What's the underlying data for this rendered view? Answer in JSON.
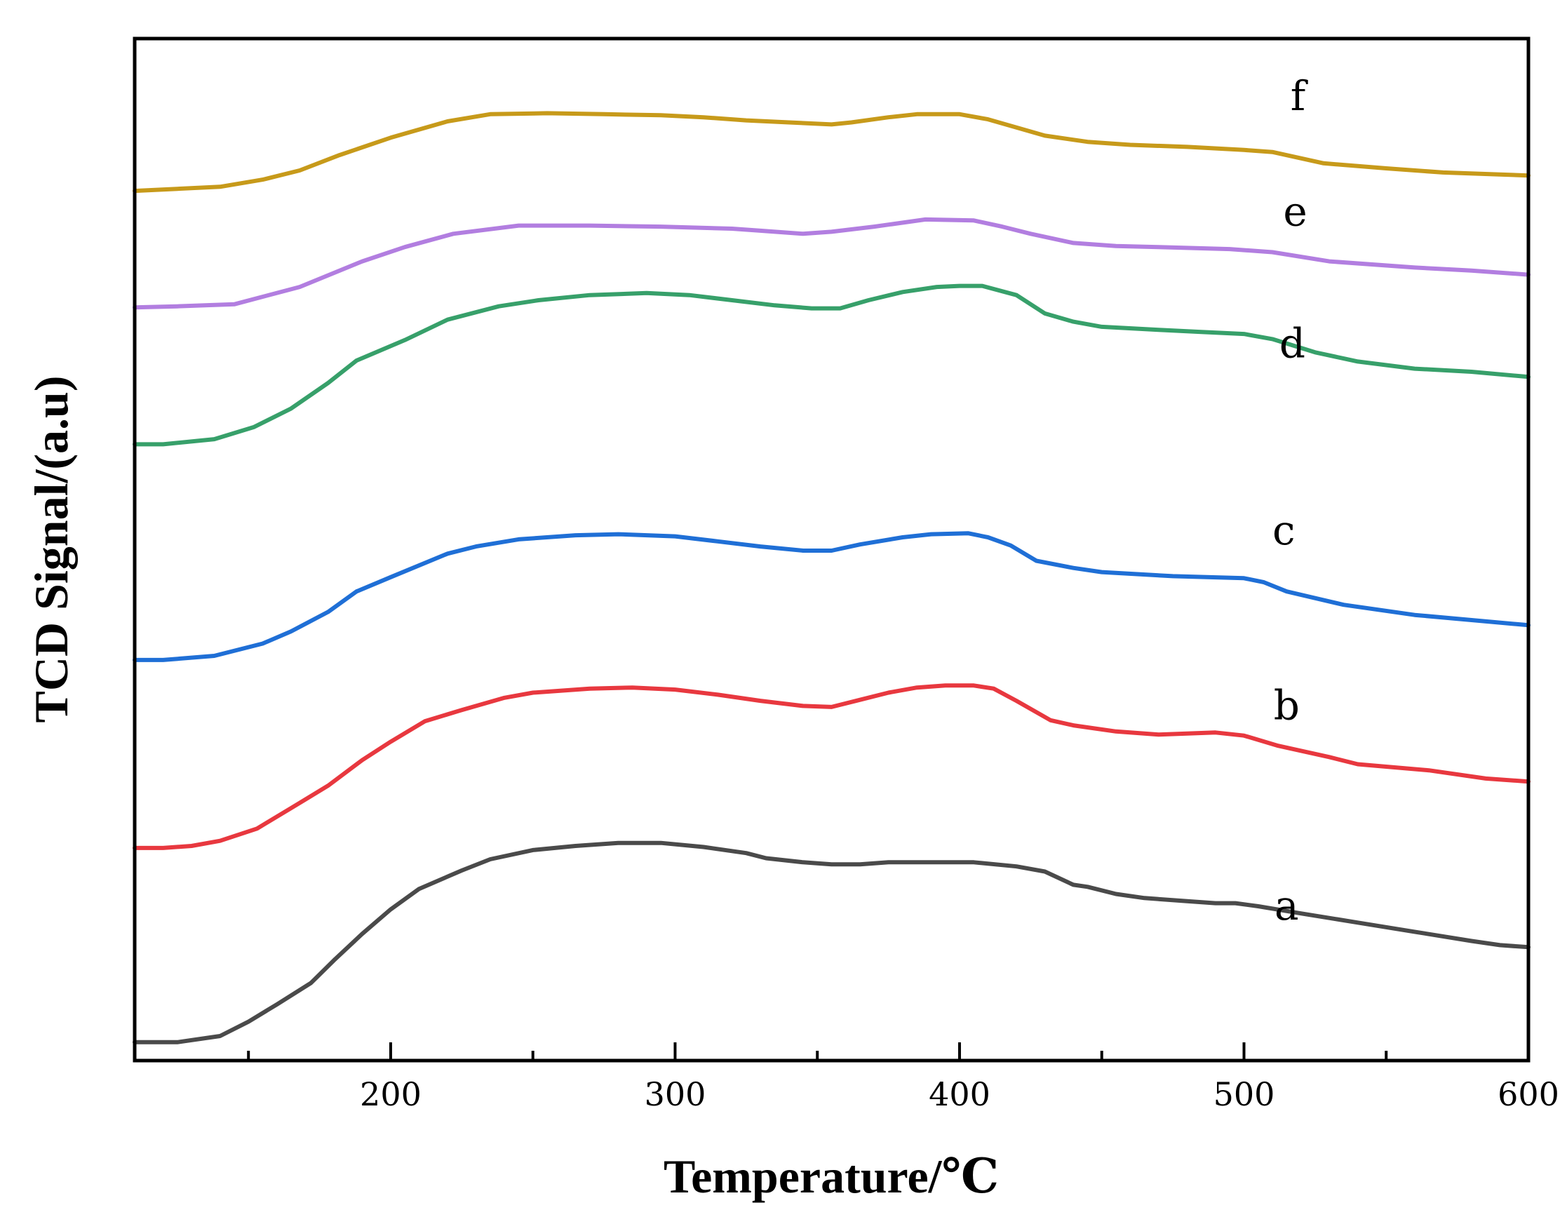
{
  "chart_data": {
    "type": "line",
    "title": "",
    "xlabel": "Temperature/℃",
    "ylabel": "TCD Signal/(a.u)",
    "xlim": [
      110,
      600
    ],
    "ylim": [
      0,
      100
    ],
    "x_ticks": [
      "200",
      "300",
      "400",
      "500",
      "600"
    ],
    "y_ticks": [],
    "grid": false,
    "legend": "none",
    "series": [
      {
        "name": "a",
        "color": "#4a4a4a",
        "label_at": [
          515,
          13.8
        ],
        "points": [
          [
            110,
            1.8
          ],
          [
            125,
            1.8
          ],
          [
            140,
            2.4
          ],
          [
            150,
            3.8
          ],
          [
            160,
            5.5
          ],
          [
            172,
            7.6
          ],
          [
            180,
            9.8
          ],
          [
            190,
            12.4
          ],
          [
            200,
            14.8
          ],
          [
            210,
            16.8
          ],
          [
            225,
            18.6
          ],
          [
            235,
            19.7
          ],
          [
            250,
            20.6
          ],
          [
            265,
            21.0
          ],
          [
            280,
            21.3
          ],
          [
            295,
            21.3
          ],
          [
            310,
            20.9
          ],
          [
            325,
            20.3
          ],
          [
            332,
            19.8
          ],
          [
            345,
            19.4
          ],
          [
            355,
            19.2
          ],
          [
            365,
            19.2
          ],
          [
            375,
            19.4
          ],
          [
            390,
            19.4
          ],
          [
            405,
            19.4
          ],
          [
            420,
            19.0
          ],
          [
            430,
            18.5
          ],
          [
            440,
            17.2
          ],
          [
            445,
            17.0
          ],
          [
            455,
            16.3
          ],
          [
            465,
            15.9
          ],
          [
            480,
            15.6
          ],
          [
            490,
            15.4
          ],
          [
            497,
            15.4
          ],
          [
            505,
            15.1
          ],
          [
            520,
            14.4
          ],
          [
            540,
            13.5
          ],
          [
            560,
            12.6
          ],
          [
            580,
            11.7
          ],
          [
            590,
            11.3
          ],
          [
            600,
            11.1
          ]
        ]
      },
      {
        "name": "b",
        "color": "#e8383f",
        "label_at": [
          515,
          33.4
        ],
        "points": [
          [
            110,
            20.8
          ],
          [
            120,
            20.8
          ],
          [
            130,
            21.0
          ],
          [
            140,
            21.5
          ],
          [
            153,
            22.7
          ],
          [
            165,
            24.7
          ],
          [
            178,
            26.9
          ],
          [
            190,
            29.4
          ],
          [
            200,
            31.2
          ],
          [
            212,
            33.2
          ],
          [
            225,
            34.3
          ],
          [
            240,
            35.5
          ],
          [
            250,
            36.0
          ],
          [
            270,
            36.4
          ],
          [
            285,
            36.5
          ],
          [
            300,
            36.3
          ],
          [
            315,
            35.8
          ],
          [
            330,
            35.2
          ],
          [
            345,
            34.7
          ],
          [
            355,
            34.6
          ],
          [
            365,
            35.3
          ],
          [
            375,
            36.0
          ],
          [
            385,
            36.5
          ],
          [
            395,
            36.7
          ],
          [
            405,
            36.7
          ],
          [
            412,
            36.4
          ],
          [
            420,
            35.2
          ],
          [
            432,
            33.3
          ],
          [
            440,
            32.8
          ],
          [
            455,
            32.2
          ],
          [
            470,
            31.9
          ],
          [
            480,
            32.0
          ],
          [
            490,
            32.1
          ],
          [
            500,
            31.8
          ],
          [
            512,
            30.8
          ],
          [
            530,
            29.7
          ],
          [
            540,
            29.0
          ],
          [
            565,
            28.4
          ],
          [
            585,
            27.6
          ],
          [
            600,
            27.3
          ]
        ]
      },
      {
        "name": "c",
        "color": "#1f6fd6",
        "label_at": [
          514,
          50.5
        ],
        "points": [
          [
            110,
            39.2
          ],
          [
            120,
            39.2
          ],
          [
            138,
            39.6
          ],
          [
            155,
            40.8
          ],
          [
            165,
            42.0
          ],
          [
            178,
            43.9
          ],
          [
            188,
            45.9
          ],
          [
            200,
            47.3
          ],
          [
            220,
            49.6
          ],
          [
            230,
            50.3
          ],
          [
            245,
            51.0
          ],
          [
            265,
            51.4
          ],
          [
            280,
            51.5
          ],
          [
            300,
            51.3
          ],
          [
            315,
            50.8
          ],
          [
            330,
            50.3
          ],
          [
            345,
            49.9
          ],
          [
            355,
            49.9
          ],
          [
            365,
            50.5
          ],
          [
            380,
            51.2
          ],
          [
            390,
            51.5
          ],
          [
            403,
            51.6
          ],
          [
            410,
            51.2
          ],
          [
            418,
            50.4
          ],
          [
            427,
            48.9
          ],
          [
            440,
            48.2
          ],
          [
            450,
            47.8
          ],
          [
            475,
            47.4
          ],
          [
            500,
            47.2
          ],
          [
            507,
            46.8
          ],
          [
            515,
            45.9
          ],
          [
            535,
            44.6
          ],
          [
            560,
            43.6
          ],
          [
            580,
            43.1
          ],
          [
            600,
            42.6
          ]
        ]
      },
      {
        "name": "d",
        "color": "#37a06a",
        "label_at": [
          517,
          68.8
        ],
        "points": [
          [
            110,
            60.3
          ],
          [
            120,
            60.3
          ],
          [
            138,
            60.8
          ],
          [
            152,
            62.0
          ],
          [
            165,
            63.8
          ],
          [
            178,
            66.3
          ],
          [
            188,
            68.5
          ],
          [
            205,
            70.5
          ],
          [
            220,
            72.5
          ],
          [
            238,
            73.8
          ],
          [
            252,
            74.4
          ],
          [
            270,
            74.9
          ],
          [
            290,
            75.1
          ],
          [
            305,
            74.9
          ],
          [
            320,
            74.4
          ],
          [
            335,
            73.9
          ],
          [
            348,
            73.6
          ],
          [
            358,
            73.6
          ],
          [
            368,
            74.4
          ],
          [
            380,
            75.2
          ],
          [
            392,
            75.7
          ],
          [
            400,
            75.8
          ],
          [
            408,
            75.8
          ],
          [
            420,
            74.9
          ],
          [
            430,
            73.1
          ],
          [
            440,
            72.3
          ],
          [
            450,
            71.8
          ],
          [
            470,
            71.5
          ],
          [
            485,
            71.3
          ],
          [
            500,
            71.1
          ],
          [
            510,
            70.6
          ],
          [
            525,
            69.3
          ],
          [
            540,
            68.4
          ],
          [
            560,
            67.7
          ],
          [
            580,
            67.4
          ],
          [
            600,
            66.9
          ]
        ]
      },
      {
        "name": "e",
        "color": "#b27ee0",
        "label_at": [
          518,
          81.7
        ],
        "points": [
          [
            110,
            73.7
          ],
          [
            125,
            73.8
          ],
          [
            145,
            74.0
          ],
          [
            168,
            75.7
          ],
          [
            190,
            78.2
          ],
          [
            205,
            79.6
          ],
          [
            222,
            80.9
          ],
          [
            245,
            81.7
          ],
          [
            270,
            81.7
          ],
          [
            295,
            81.6
          ],
          [
            320,
            81.4
          ],
          [
            330,
            81.2
          ],
          [
            345,
            80.9
          ],
          [
            355,
            81.1
          ],
          [
            370,
            81.6
          ],
          [
            388,
            82.3
          ],
          [
            405,
            82.2
          ],
          [
            415,
            81.6
          ],
          [
            425,
            80.9
          ],
          [
            440,
            80.0
          ],
          [
            455,
            79.7
          ],
          [
            470,
            79.6
          ],
          [
            495,
            79.4
          ],
          [
            510,
            79.1
          ],
          [
            530,
            78.2
          ],
          [
            560,
            77.6
          ],
          [
            580,
            77.3
          ],
          [
            600,
            76.9
          ]
        ]
      },
      {
        "name": "f",
        "color": "#c79a1a",
        "label_at": [
          519,
          93.0
        ],
        "points": [
          [
            110,
            85.1
          ],
          [
            125,
            85.3
          ],
          [
            140,
            85.5
          ],
          [
            155,
            86.2
          ],
          [
            168,
            87.1
          ],
          [
            182,
            88.6
          ],
          [
            200,
            90.3
          ],
          [
            220,
            91.9
          ],
          [
            235,
            92.6
          ],
          [
            255,
            92.7
          ],
          [
            275,
            92.6
          ],
          [
            295,
            92.5
          ],
          [
            310,
            92.3
          ],
          [
            325,
            92.0
          ],
          [
            340,
            91.8
          ],
          [
            355,
            91.6
          ],
          [
            362,
            91.8
          ],
          [
            375,
            92.3
          ],
          [
            385,
            92.6
          ],
          [
            400,
            92.6
          ],
          [
            410,
            92.1
          ],
          [
            420,
            91.3
          ],
          [
            430,
            90.5
          ],
          [
            445,
            89.9
          ],
          [
            460,
            89.6
          ],
          [
            480,
            89.4
          ],
          [
            500,
            89.1
          ],
          [
            510,
            88.9
          ],
          [
            528,
            87.8
          ],
          [
            550,
            87.3
          ],
          [
            570,
            86.9
          ],
          [
            590,
            86.7
          ],
          [
            600,
            86.6
          ]
        ]
      }
    ]
  }
}
